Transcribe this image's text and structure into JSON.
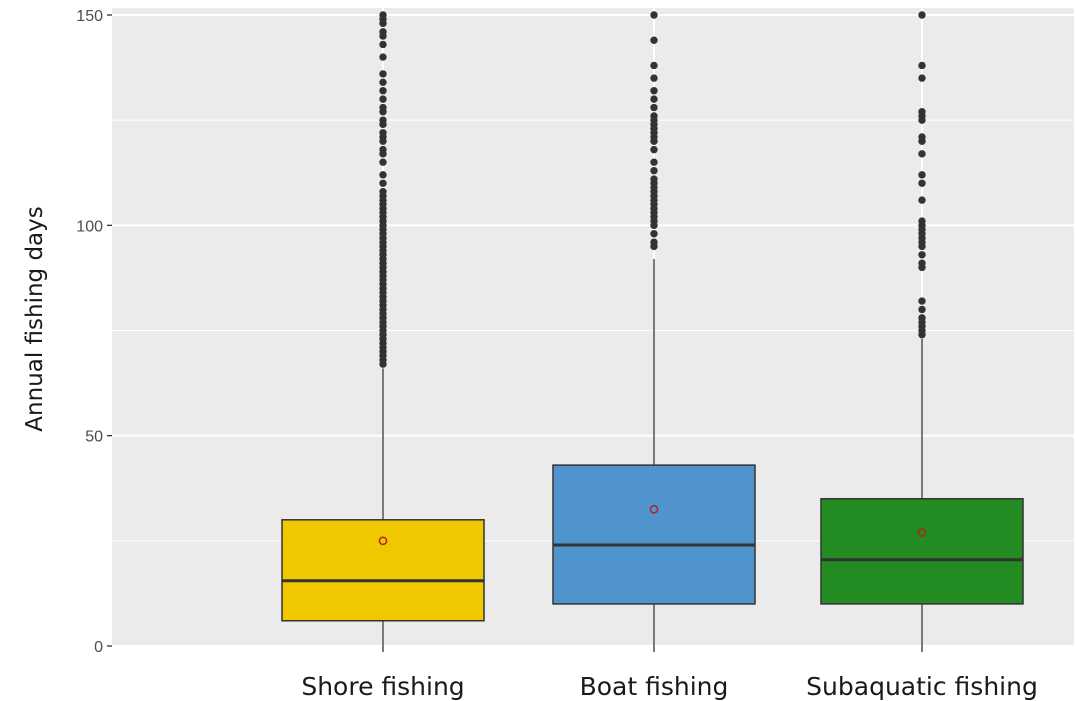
{
  "chart_data": {
    "type": "boxplot",
    "title": "",
    "xlabel": "",
    "ylabel": "Annual fishing days",
    "ylim": [
      0,
      150
    ],
    "yticks": [
      0,
      50,
      100,
      150
    ],
    "grid": true,
    "legend": "none",
    "colors": {
      "panel_background": "#ebebeb",
      "gridline": "#ffffff",
      "box_edge": "#333333",
      "outlier": "#333333",
      "mean_marker": "#b22222"
    },
    "categories": [
      "Shore fishing",
      "Boat fishing",
      "Subaquatic fishing"
    ],
    "boxes": [
      {
        "category": "Shore fishing",
        "color": "#f0c800",
        "whisker_low": 0,
        "q1": 6,
        "median": 15.5,
        "q3": 30,
        "whisker_high": 66,
        "mean": 25,
        "outliers": [
          67,
          68,
          69,
          70,
          71,
          72,
          73,
          74,
          75,
          76,
          77,
          78,
          79,
          80,
          81,
          82,
          83,
          84,
          85,
          86,
          87,
          88,
          89,
          90,
          91,
          92,
          93,
          94,
          95,
          96,
          97,
          98,
          99,
          100,
          101,
          102,
          103,
          104,
          105,
          106,
          107,
          108,
          110,
          112,
          115,
          117,
          118,
          120,
          121,
          122,
          124,
          125,
          127,
          128,
          130,
          132,
          134,
          136,
          140,
          143,
          145,
          146,
          148,
          149,
          150
        ]
      },
      {
        "category": "Boat fishing",
        "color": "#4f94cd",
        "whisker_low": 0,
        "q1": 10,
        "median": 24,
        "q3": 43,
        "whisker_high": 92,
        "mean": 32.5,
        "outliers": [
          95,
          96,
          98,
          100,
          101,
          102,
          103,
          104,
          105,
          106,
          107,
          108,
          109,
          110,
          111,
          113,
          115,
          118,
          120,
          121,
          122,
          123,
          124,
          125,
          126,
          128,
          130,
          132,
          135,
          138,
          144,
          150
        ]
      },
      {
        "category": "Subaquatic fishing",
        "color": "#228b22",
        "whisker_low": 0,
        "q1": 10,
        "median": 20.5,
        "q3": 35,
        "whisker_high": 73,
        "mean": 27,
        "outliers": [
          74,
          75,
          76,
          77,
          78,
          80,
          82,
          90,
          91,
          93,
          95,
          96,
          97,
          98,
          99,
          100,
          101,
          106,
          110,
          112,
          117,
          120,
          121,
          125,
          126,
          127,
          135,
          138,
          150
        ]
      }
    ]
  }
}
